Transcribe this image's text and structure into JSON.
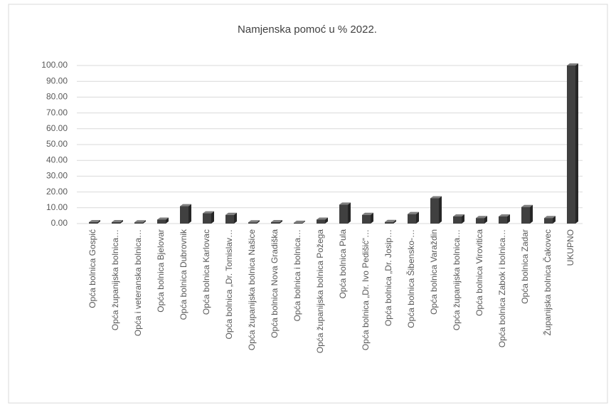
{
  "chart_data": {
    "type": "bar",
    "title": "Namjenska pomoć u %  2022.",
    "categories": [
      "Opća bolnica Gospić",
      "Opća županijska bolnica…",
      "Opća i veteranska bolnica…",
      "Opća bolnica Bjelovar",
      "Opća bolnica Dubrovnik",
      "Opća bolnica Karlovac",
      "Opća bolnica „Dr. Tomislav…",
      "Opća županijska bolnica Našice",
      "Opća bolnica Nova Gradiška",
      "Opća bolnica i bolnica…",
      "Opća županijska bolnica Požega",
      "Opća bolnica Pula",
      "Opća bolnica „Dr. Ivo Pedišić“…",
      "Opća  bolnica „Dr. Josip…",
      "Opća bolnica Šibensko-…",
      "Opća bolnica Varaždin",
      "Opća županijska bolnica…",
      "Opća bolnica Virovitica",
      "Opća bolnica Zabok i bolnica…",
      "Opća bolnica Zadar",
      "Županijska bolnica Čakovec",
      "UKUPNO"
    ],
    "values": [
      0.9,
      0.9,
      0.8,
      2.5,
      11,
      6.5,
      5.5,
      0.8,
      0.9,
      0.5,
      2.5,
      12,
      5.5,
      1,
      6,
      16,
      4.5,
      3.5,
      4.5,
      10.5,
      3.5,
      100
    ],
    "color": "#404040",
    "ylim": [
      0,
      100
    ],
    "yticks": [
      {
        "value": 0,
        "label": "0.00"
      },
      {
        "value": 10,
        "label": "10.00"
      },
      {
        "value": 20,
        "label": "20.00"
      },
      {
        "value": 30,
        "label": "30.00"
      },
      {
        "value": 40,
        "label": "40.00"
      },
      {
        "value": 50,
        "label": "50.00"
      },
      {
        "value": 60,
        "label": "60.00"
      },
      {
        "value": 70,
        "label": "70.00"
      },
      {
        "value": 80,
        "label": "80.00"
      },
      {
        "value": 90,
        "label": "90.00"
      },
      {
        "value": 100,
        "label": "100.00"
      }
    ],
    "grid": true
  }
}
